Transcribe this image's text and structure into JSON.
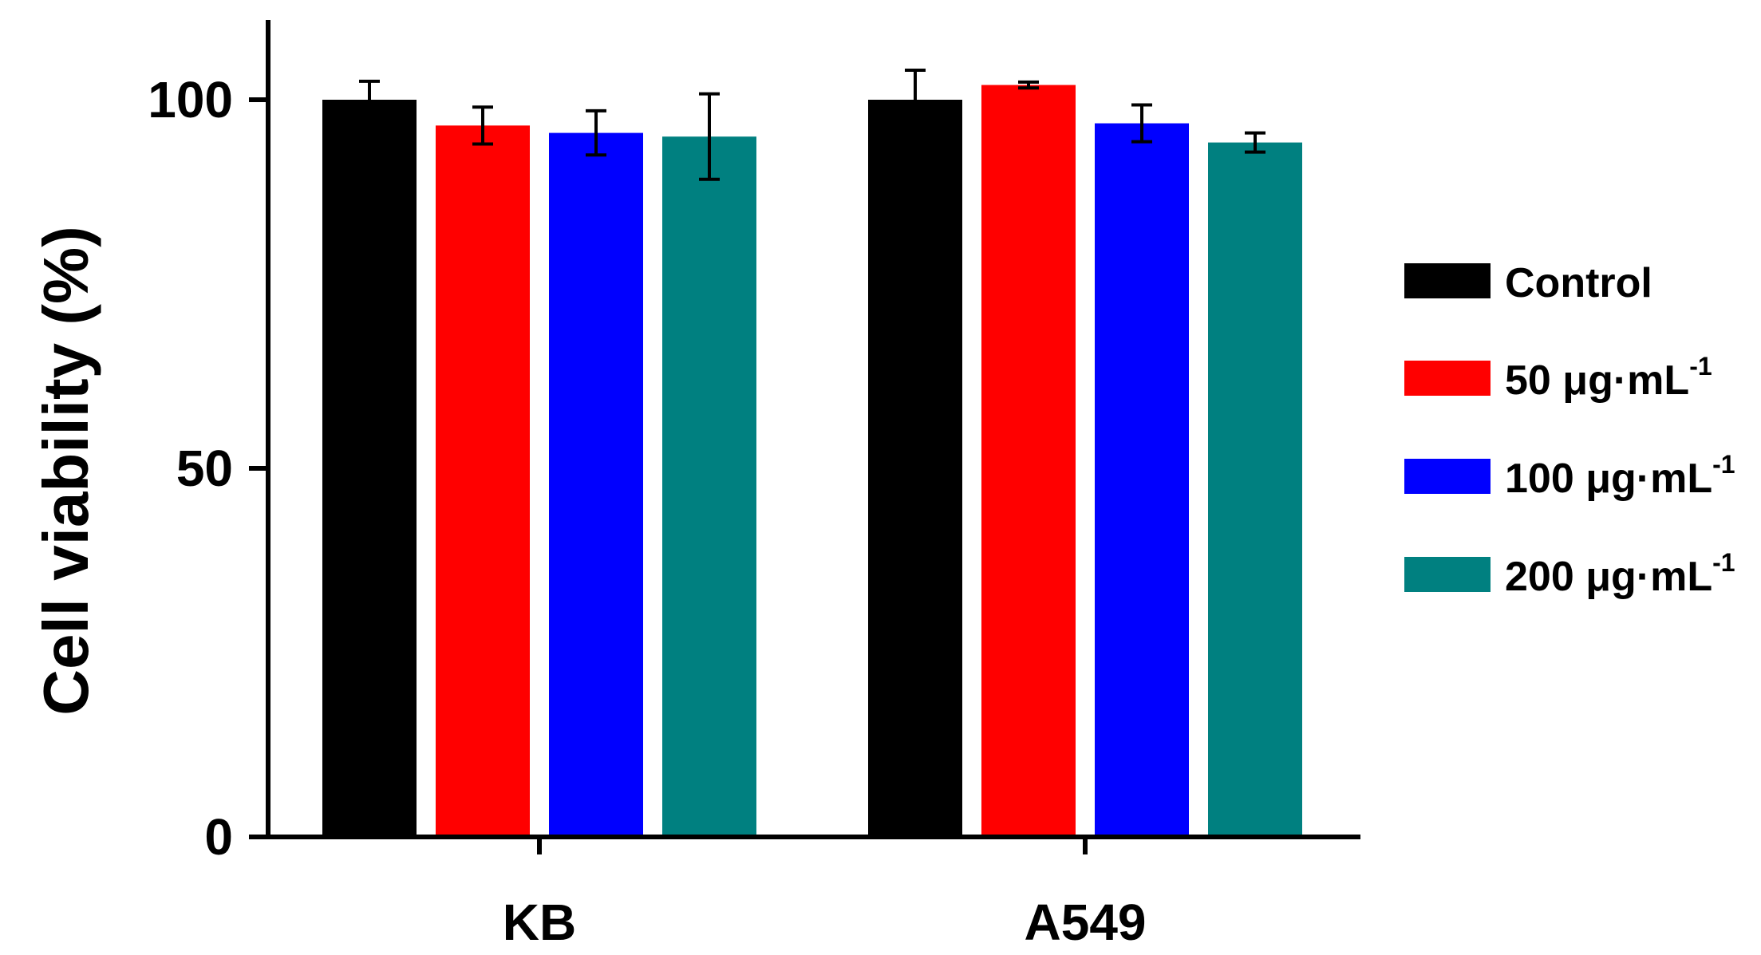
{
  "chart_data": {
    "type": "bar",
    "title": "",
    "xlabel": "",
    "ylabel": "Cell viability (%)",
    "ylim": [
      0,
      110
    ],
    "yticks": [
      0,
      50,
      100
    ],
    "grid": false,
    "legend_position": "right",
    "categories": [
      "KB",
      "A549"
    ],
    "series": [
      {
        "name": "Control",
        "color": "#000000",
        "values": [
          100,
          100
        ],
        "errors": [
          2.5,
          4
        ]
      },
      {
        "name": "50 μg·mL",
        "superscript": "-1",
        "color": "#ff0000",
        "values": [
          96.5,
          102
        ],
        "errors": [
          2.5,
          0.4
        ]
      },
      {
        "name": "100 μg·mL",
        "superscript": "-1",
        "color": "#0000ff",
        "values": [
          95.5,
          96.8
        ],
        "errors": [
          3,
          2.5
        ]
      },
      {
        "name": "200 μg·mL",
        "superscript": "-1",
        "color": "#008080",
        "values": [
          95,
          94.2
        ],
        "errors": [
          5.8,
          1.3
        ]
      }
    ]
  }
}
